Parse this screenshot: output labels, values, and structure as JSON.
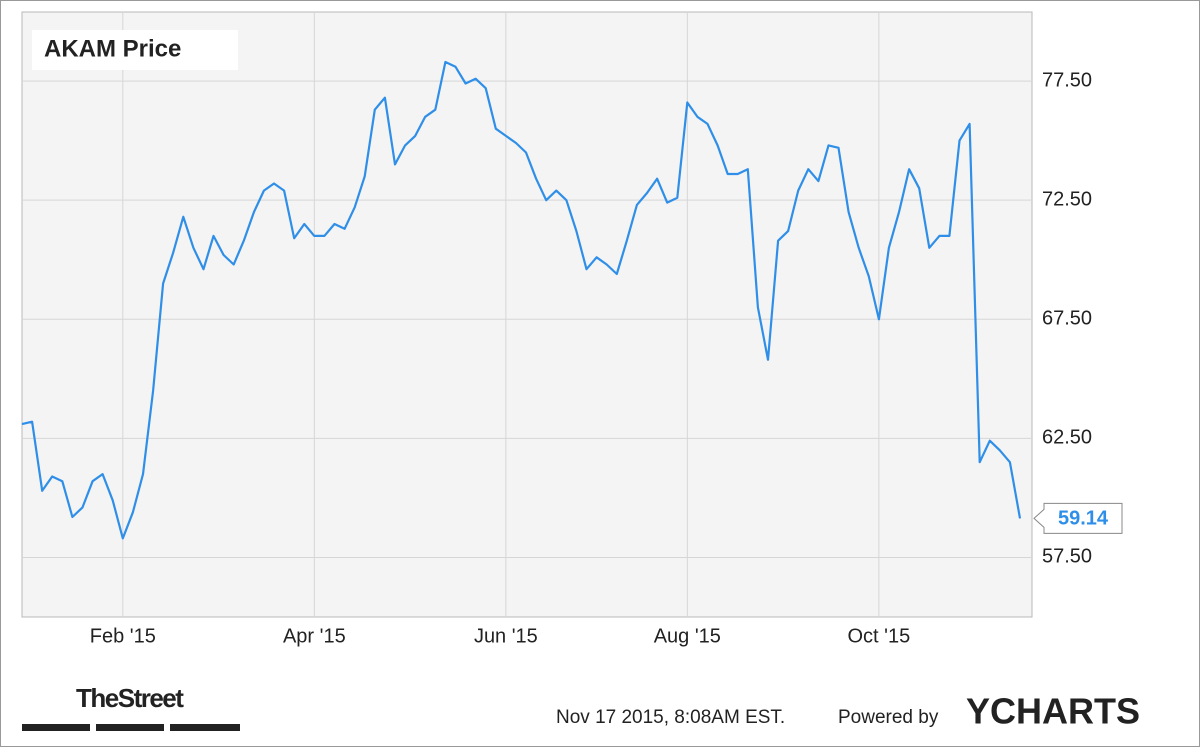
{
  "chart_data": {
    "type": "line",
    "title": "AKAM Price",
    "categories": [
      null,
      null,
      null,
      null,
      null,
      null,
      null,
      null,
      null,
      null,
      "Feb '15",
      null,
      null,
      null,
      null,
      null,
      null,
      null,
      null,
      null,
      null,
      null,
      null,
      null,
      null,
      null,
      null,
      null,
      null,
      "Apr '15",
      null,
      null,
      null,
      null,
      null,
      null,
      null,
      null,
      null,
      null,
      null,
      null,
      null,
      null,
      null,
      null,
      null,
      null,
      "Jun '15",
      null,
      null,
      null,
      null,
      null,
      null,
      null,
      null,
      null,
      null,
      null,
      null,
      null,
      null,
      null,
      null,
      null,
      "Aug '15",
      null,
      null,
      null,
      null,
      null,
      null,
      null,
      null,
      null,
      null,
      null,
      null,
      null,
      null,
      null,
      null,
      null,
      null,
      "Oct '15",
      null,
      null,
      null,
      null,
      null,
      null,
      null,
      null,
      null,
      null,
      null,
      null,
      null,
      null
    ],
    "series": [
      {
        "name": "AKAM Price",
        "color": "#2f8fe8",
        "values": [
          63.1,
          63.2,
          60.3,
          60.9,
          60.7,
          59.2,
          59.6,
          60.7,
          61.0,
          59.9,
          58.3,
          59.4,
          61.0,
          64.5,
          69.0,
          70.3,
          71.8,
          70.5,
          69.6,
          71.0,
          70.2,
          69.8,
          70.8,
          72.0,
          72.9,
          73.2,
          72.9,
          70.9,
          71.5,
          71.0,
          71.0,
          71.5,
          71.3,
          72.2,
          73.5,
          76.3,
          76.8,
          74.0,
          74.8,
          75.2,
          76.0,
          76.3,
          78.3,
          78.1,
          77.4,
          77.6,
          77.2,
          75.5,
          75.2,
          74.9,
          74.5,
          73.4,
          72.5,
          72.9,
          72.5,
          71.2,
          69.6,
          70.1,
          69.8,
          69.4,
          70.8,
          72.3,
          72.8,
          73.4,
          72.4,
          72.6,
          76.6,
          76.0,
          75.7,
          74.8,
          73.6,
          73.6,
          73.8,
          68.0,
          65.8,
          70.8,
          71.2,
          72.9,
          73.8,
          73.3,
          74.8,
          74.7,
          72.0,
          70.5,
          69.3,
          67.5,
          70.5,
          72.0,
          73.8,
          73.0,
          70.5,
          71.0,
          71.0,
          75.0,
          75.7,
          61.5,
          62.4,
          62.0,
          61.5,
          59.14
        ]
      }
    ],
    "ylim": [
      55,
      80.4
    ],
    "yticks": [
      {
        "value": 57.5,
        "label": "57.50"
      },
      {
        "value": 62.5,
        "label": "62.50"
      },
      {
        "value": 67.5,
        "label": "67.50"
      },
      {
        "value": 72.5,
        "label": "72.50"
      },
      {
        "value": 77.5,
        "label": "77.50"
      }
    ],
    "grid": true
  },
  "footer": {
    "source_logo": "TheStreet",
    "timestamp": "Nov 17 2015, 8:08AM EST.",
    "powered_by": "Powered by",
    "brand": "YCHARTS"
  }
}
